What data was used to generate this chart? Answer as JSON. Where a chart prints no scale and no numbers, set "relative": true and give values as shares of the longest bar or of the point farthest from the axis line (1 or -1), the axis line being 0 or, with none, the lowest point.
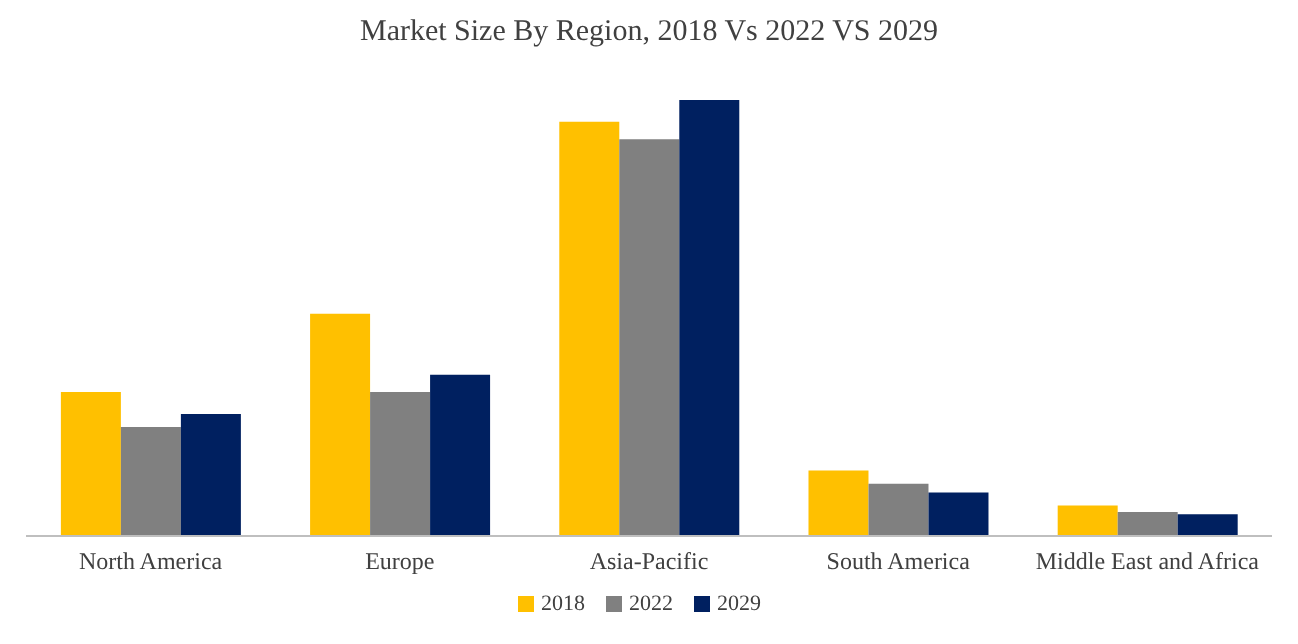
{
  "chart_data": {
    "type": "bar",
    "title": "Market Size By Region, 2018 Vs 2022 VS 2029",
    "relative": true,
    "categories": [
      "North America",
      "Europe",
      "Asia-Pacific",
      "South America",
      "Middle East and Africa"
    ],
    "series": [
      {
        "name": "2018",
        "color": "#ffc000",
        "values": [
          0.33,
          0.51,
          0.95,
          0.15,
          0.07
        ]
      },
      {
        "name": "2022",
        "color": "#808080",
        "values": [
          0.25,
          0.33,
          0.91,
          0.12,
          0.055
        ]
      },
      {
        "name": "2029",
        "color": "#002060",
        "values": [
          0.28,
          0.37,
          1,
          0.1,
          0.05
        ]
      }
    ],
    "legend": "bottom",
    "grid": false
  }
}
